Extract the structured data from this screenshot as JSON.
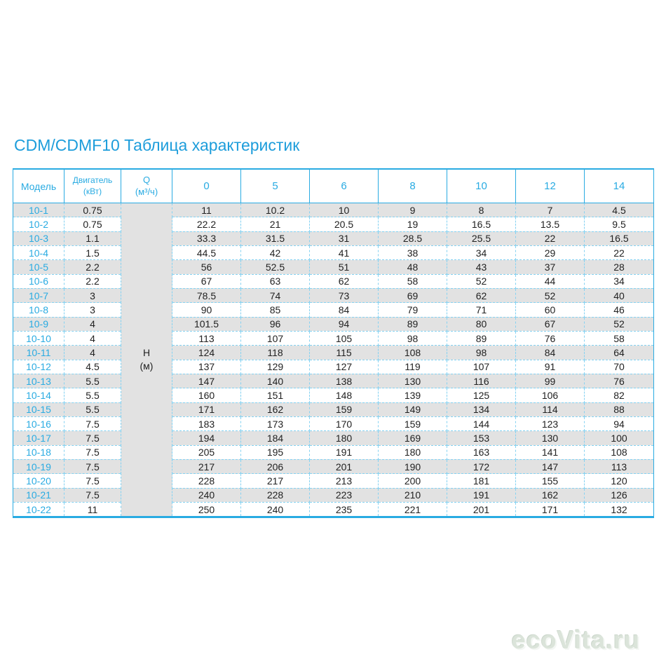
{
  "title": "CDM/CDMF10 Таблица характеристик",
  "table": {
    "headers": {
      "model": "Модель",
      "motor_line1": "Двигатель",
      "motor_line2": "(кВт)",
      "q_line1": "Q",
      "q_line2": "(м³/ч)"
    },
    "flow_columns": [
      "0",
      "5",
      "6",
      "8",
      "10",
      "12",
      "14"
    ],
    "h_label": "H",
    "h_unit": "(м)",
    "rows": [
      {
        "model": "10-1",
        "power": "0.75",
        "values": [
          "11",
          "10.2",
          "10",
          "9",
          "8",
          "7",
          "4.5"
        ]
      },
      {
        "model": "10-2",
        "power": "0.75",
        "values": [
          "22.2",
          "21",
          "20.5",
          "19",
          "16.5",
          "13.5",
          "9.5"
        ]
      },
      {
        "model": "10-3",
        "power": "1.1",
        "values": [
          "33.3",
          "31.5",
          "31",
          "28.5",
          "25.5",
          "22",
          "16.5"
        ]
      },
      {
        "model": "10-4",
        "power": "1.5",
        "values": [
          "44.5",
          "42",
          "41",
          "38",
          "34",
          "29",
          "22"
        ]
      },
      {
        "model": "10-5",
        "power": "2.2",
        "values": [
          "56",
          "52.5",
          "51",
          "48",
          "43",
          "37",
          "28"
        ]
      },
      {
        "model": "10-6",
        "power": "2.2",
        "values": [
          "67",
          "63",
          "62",
          "58",
          "52",
          "44",
          "34"
        ]
      },
      {
        "model": "10-7",
        "power": "3",
        "values": [
          "78.5",
          "74",
          "73",
          "69",
          "62",
          "52",
          "40"
        ]
      },
      {
        "model": "10-8",
        "power": "3",
        "values": [
          "90",
          "85",
          "84",
          "79",
          "71",
          "60",
          "46"
        ]
      },
      {
        "model": "10-9",
        "power": "4",
        "values": [
          "101.5",
          "96",
          "94",
          "89",
          "80",
          "67",
          "52"
        ]
      },
      {
        "model": "10-10",
        "power": "4",
        "values": [
          "113",
          "107",
          "105",
          "98",
          "89",
          "76",
          "58"
        ]
      },
      {
        "model": "10-11",
        "power": "4",
        "values": [
          "124",
          "118",
          "115",
          "108",
          "98",
          "84",
          "64"
        ]
      },
      {
        "model": "10-12",
        "power": "4.5",
        "values": [
          "137",
          "129",
          "127",
          "119",
          "107",
          "91",
          "70"
        ]
      },
      {
        "model": "10-13",
        "power": "5.5",
        "values": [
          "147",
          "140",
          "138",
          "130",
          "116",
          "99",
          "76"
        ]
      },
      {
        "model": "10-14",
        "power": "5.5",
        "values": [
          "160",
          "151",
          "148",
          "139",
          "125",
          "106",
          "82"
        ]
      },
      {
        "model": "10-15",
        "power": "5.5",
        "values": [
          "171",
          "162",
          "159",
          "149",
          "134",
          "114",
          "88"
        ]
      },
      {
        "model": "10-16",
        "power": "7.5",
        "values": [
          "183",
          "173",
          "170",
          "159",
          "144",
          "123",
          "94"
        ]
      },
      {
        "model": "10-17",
        "power": "7.5",
        "values": [
          "194",
          "184",
          "180",
          "169",
          "153",
          "130",
          "100"
        ]
      },
      {
        "model": "10-18",
        "power": "7.5",
        "values": [
          "205",
          "195",
          "191",
          "180",
          "163",
          "141",
          "108"
        ]
      },
      {
        "model": "10-19",
        "power": "7.5",
        "values": [
          "217",
          "206",
          "201",
          "190",
          "172",
          "147",
          "113"
        ]
      },
      {
        "model": "10-20",
        "power": "7.5",
        "values": [
          "228",
          "217",
          "213",
          "200",
          "181",
          "155",
          "120"
        ]
      },
      {
        "model": "10-21",
        "power": "7.5",
        "values": [
          "240",
          "228",
          "223",
          "210",
          "191",
          "162",
          "126"
        ]
      },
      {
        "model": "10-22",
        "power": "11",
        "values": [
          "250",
          "240",
          "235",
          "221",
          "201",
          "171",
          "132"
        ]
      }
    ]
  },
  "watermark": "ecoVita.ru",
  "colors": {
    "accent": "#29ABE2",
    "title": "#1D9DDB",
    "row_stripe": "#E2E2E2",
    "dashed_border": "#85D2F2",
    "watermark": "#DBE4DA"
  }
}
